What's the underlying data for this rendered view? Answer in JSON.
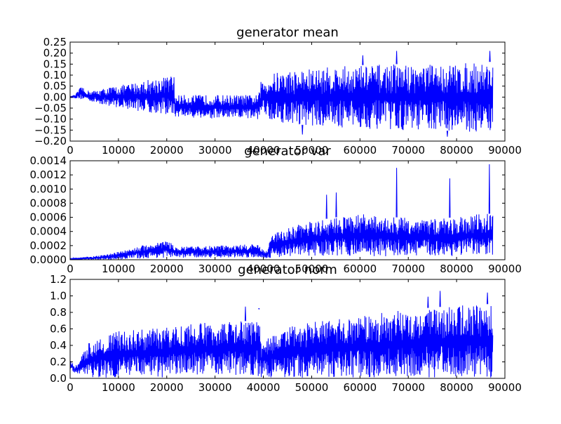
{
  "chart_data": [
    {
      "type": "line",
      "title": "generator mean",
      "xlim": [
        0,
        90000
      ],
      "ylim": [
        -0.2,
        0.25
      ],
      "xticks": [
        0,
        10000,
        20000,
        30000,
        40000,
        50000,
        60000,
        70000,
        80000,
        90000
      ],
      "yticks": [
        -0.2,
        -0.15,
        -0.1,
        -0.05,
        0.0,
        0.05,
        0.1,
        0.15,
        0.2,
        0.25
      ],
      "xtick_labels": [
        "0",
        "10000",
        "20000",
        "30000",
        "40000",
        "50000",
        "60000",
        "70000",
        "80000",
        "90000"
      ],
      "ytick_labels": [
        "−0.20",
        "−0.15",
        "−0.10",
        "−0.05",
        "0.00",
        "0.05",
        "0.10",
        "0.15",
        "0.20",
        "0.25"
      ],
      "color": "#0000ff",
      "envelope": {
        "x": [
          0,
          1000,
          2000,
          2500,
          3000,
          5000,
          8000,
          12000,
          16000,
          20000,
          21500,
          21600,
          30000,
          39000,
          39500,
          42000,
          45000,
          50000,
          55000,
          60000,
          65000,
          70000,
          75000,
          80000,
          85000,
          87500
        ],
        "upper": [
          0.003,
          0.01,
          0.04,
          0.05,
          0.03,
          0.03,
          0.045,
          0.06,
          0.08,
          0.095,
          0.1,
          0.01,
          0.01,
          0.01,
          0.07,
          0.11,
          0.12,
          0.13,
          0.14,
          0.145,
          0.15,
          0.15,
          0.15,
          0.15,
          0.16,
          0.16
        ],
        "lower": [
          -0.003,
          -0.005,
          -0.01,
          -0.01,
          -0.01,
          -0.025,
          -0.04,
          -0.055,
          -0.07,
          -0.08,
          -0.085,
          -0.09,
          -0.1,
          -0.1,
          -0.07,
          -0.11,
          -0.12,
          -0.13,
          -0.14,
          -0.14,
          -0.15,
          -0.15,
          -0.15,
          -0.155,
          -0.16,
          -0.16
        ]
      },
      "peaks": [
        [
          67500,
          0.21
        ],
        [
          86800,
          0.21
        ],
        [
          78000,
          -0.18
        ],
        [
          48000,
          -0.17
        ],
        [
          60500,
          0.19
        ]
      ]
    },
    {
      "type": "line",
      "title": "generator var",
      "xlim": [
        0,
        90000
      ],
      "ylim": [
        0,
        0.0014
      ],
      "xticks": [
        0,
        10000,
        20000,
        30000,
        40000,
        50000,
        60000,
        70000,
        80000,
        90000
      ],
      "yticks": [
        0,
        0.0002,
        0.0004,
        0.0006,
        0.0008,
        0.001,
        0.0012,
        0.0014
      ],
      "xtick_labels": [
        "0",
        "10000",
        "20000",
        "30000",
        "40000",
        "50000",
        "60000",
        "70000",
        "80000",
        "90000"
      ],
      "ytick_labels": [
        "0.0000",
        "0.0002",
        "0.0004",
        "0.0006",
        "0.0008",
        "0.0010",
        "0.0012",
        "0.0014"
      ],
      "color": "#0000ff",
      "envelope": {
        "x": [
          0,
          3000,
          5000,
          8000,
          12000,
          16000,
          20000,
          22000,
          30000,
          39000,
          40500,
          42000,
          45000,
          50000,
          55000,
          60000,
          65000,
          70000,
          75000,
          80000,
          85000,
          87500
        ],
        "upper": [
          2e-05,
          4e-05,
          5e-05,
          8e-05,
          0.00015,
          0.00022,
          0.00028,
          0.00018,
          0.0002,
          0.00022,
          0.0001,
          0.00038,
          0.00045,
          0.00055,
          0.0006,
          0.00065,
          0.0006,
          0.0006,
          0.00058,
          0.0006,
          0.00065,
          0.00065
        ],
        "lower": [
          0,
          0,
          0,
          0,
          1e-05,
          2e-05,
          3e-05,
          3e-05,
          3e-05,
          3e-05,
          2e-05,
          3e-05,
          4e-05,
          5e-05,
          5e-05,
          5e-05,
          5e-05,
          5e-05,
          5e-05,
          5e-05,
          5e-05,
          5e-05
        ]
      },
      "peaks": [
        [
          67500,
          0.0013
        ],
        [
          86700,
          0.00135
        ],
        [
          78500,
          0.00115
        ],
        [
          55000,
          0.00095
        ],
        [
          53000,
          0.00092
        ]
      ]
    },
    {
      "type": "line",
      "title": "generator norm",
      "xlim": [
        0,
        90000
      ],
      "ylim": [
        0,
        1.2
      ],
      "xticks": [
        0,
        10000,
        20000,
        30000,
        40000,
        50000,
        60000,
        70000,
        80000,
        90000
      ],
      "yticks": [
        0,
        0.2,
        0.4,
        0.6,
        0.8,
        1.0,
        1.2
      ],
      "xtick_labels": [
        "0",
        "10000",
        "20000",
        "30000",
        "40000",
        "50000",
        "60000",
        "70000",
        "80000",
        "90000"
      ],
      "ytick_labels": [
        "0.0",
        "0.2",
        "0.4",
        "0.6",
        "0.8",
        "1.0",
        "1.2"
      ],
      "color": "#0000ff",
      "envelope": {
        "x": [
          0,
          1000,
          2000,
          3000,
          4000,
          6000,
          10000,
          15000,
          20000,
          22000,
          30000,
          38500,
          39000,
          39500,
          45000,
          50000,
          55000,
          60000,
          65000,
          70000,
          75000,
          80000,
          85000,
          87500
        ],
        "upper": [
          0.22,
          0.15,
          0.22,
          0.35,
          0.45,
          0.5,
          0.57,
          0.6,
          0.62,
          0.65,
          0.68,
          0.7,
          0.85,
          0.45,
          0.62,
          0.68,
          0.72,
          0.75,
          0.8,
          0.83,
          0.86,
          0.88,
          0.9,
          0.9
        ],
        "lower": [
          0.12,
          0.05,
          0.03,
          0.02,
          0.01,
          0.01,
          0.01,
          0.01,
          0.01,
          0.04,
          0.04,
          0.04,
          0.01,
          0.01,
          0.01,
          0.01,
          0.01,
          0.01,
          0.01,
          0.01,
          0.01,
          0.01,
          0.01,
          0.01
        ]
      },
      "peaks": [
        [
          76500,
          1.06
        ],
        [
          86300,
          1.04
        ],
        [
          74000,
          0.99
        ],
        [
          36200,
          0.87
        ],
        [
          39000,
          0.84
        ]
      ]
    }
  ]
}
